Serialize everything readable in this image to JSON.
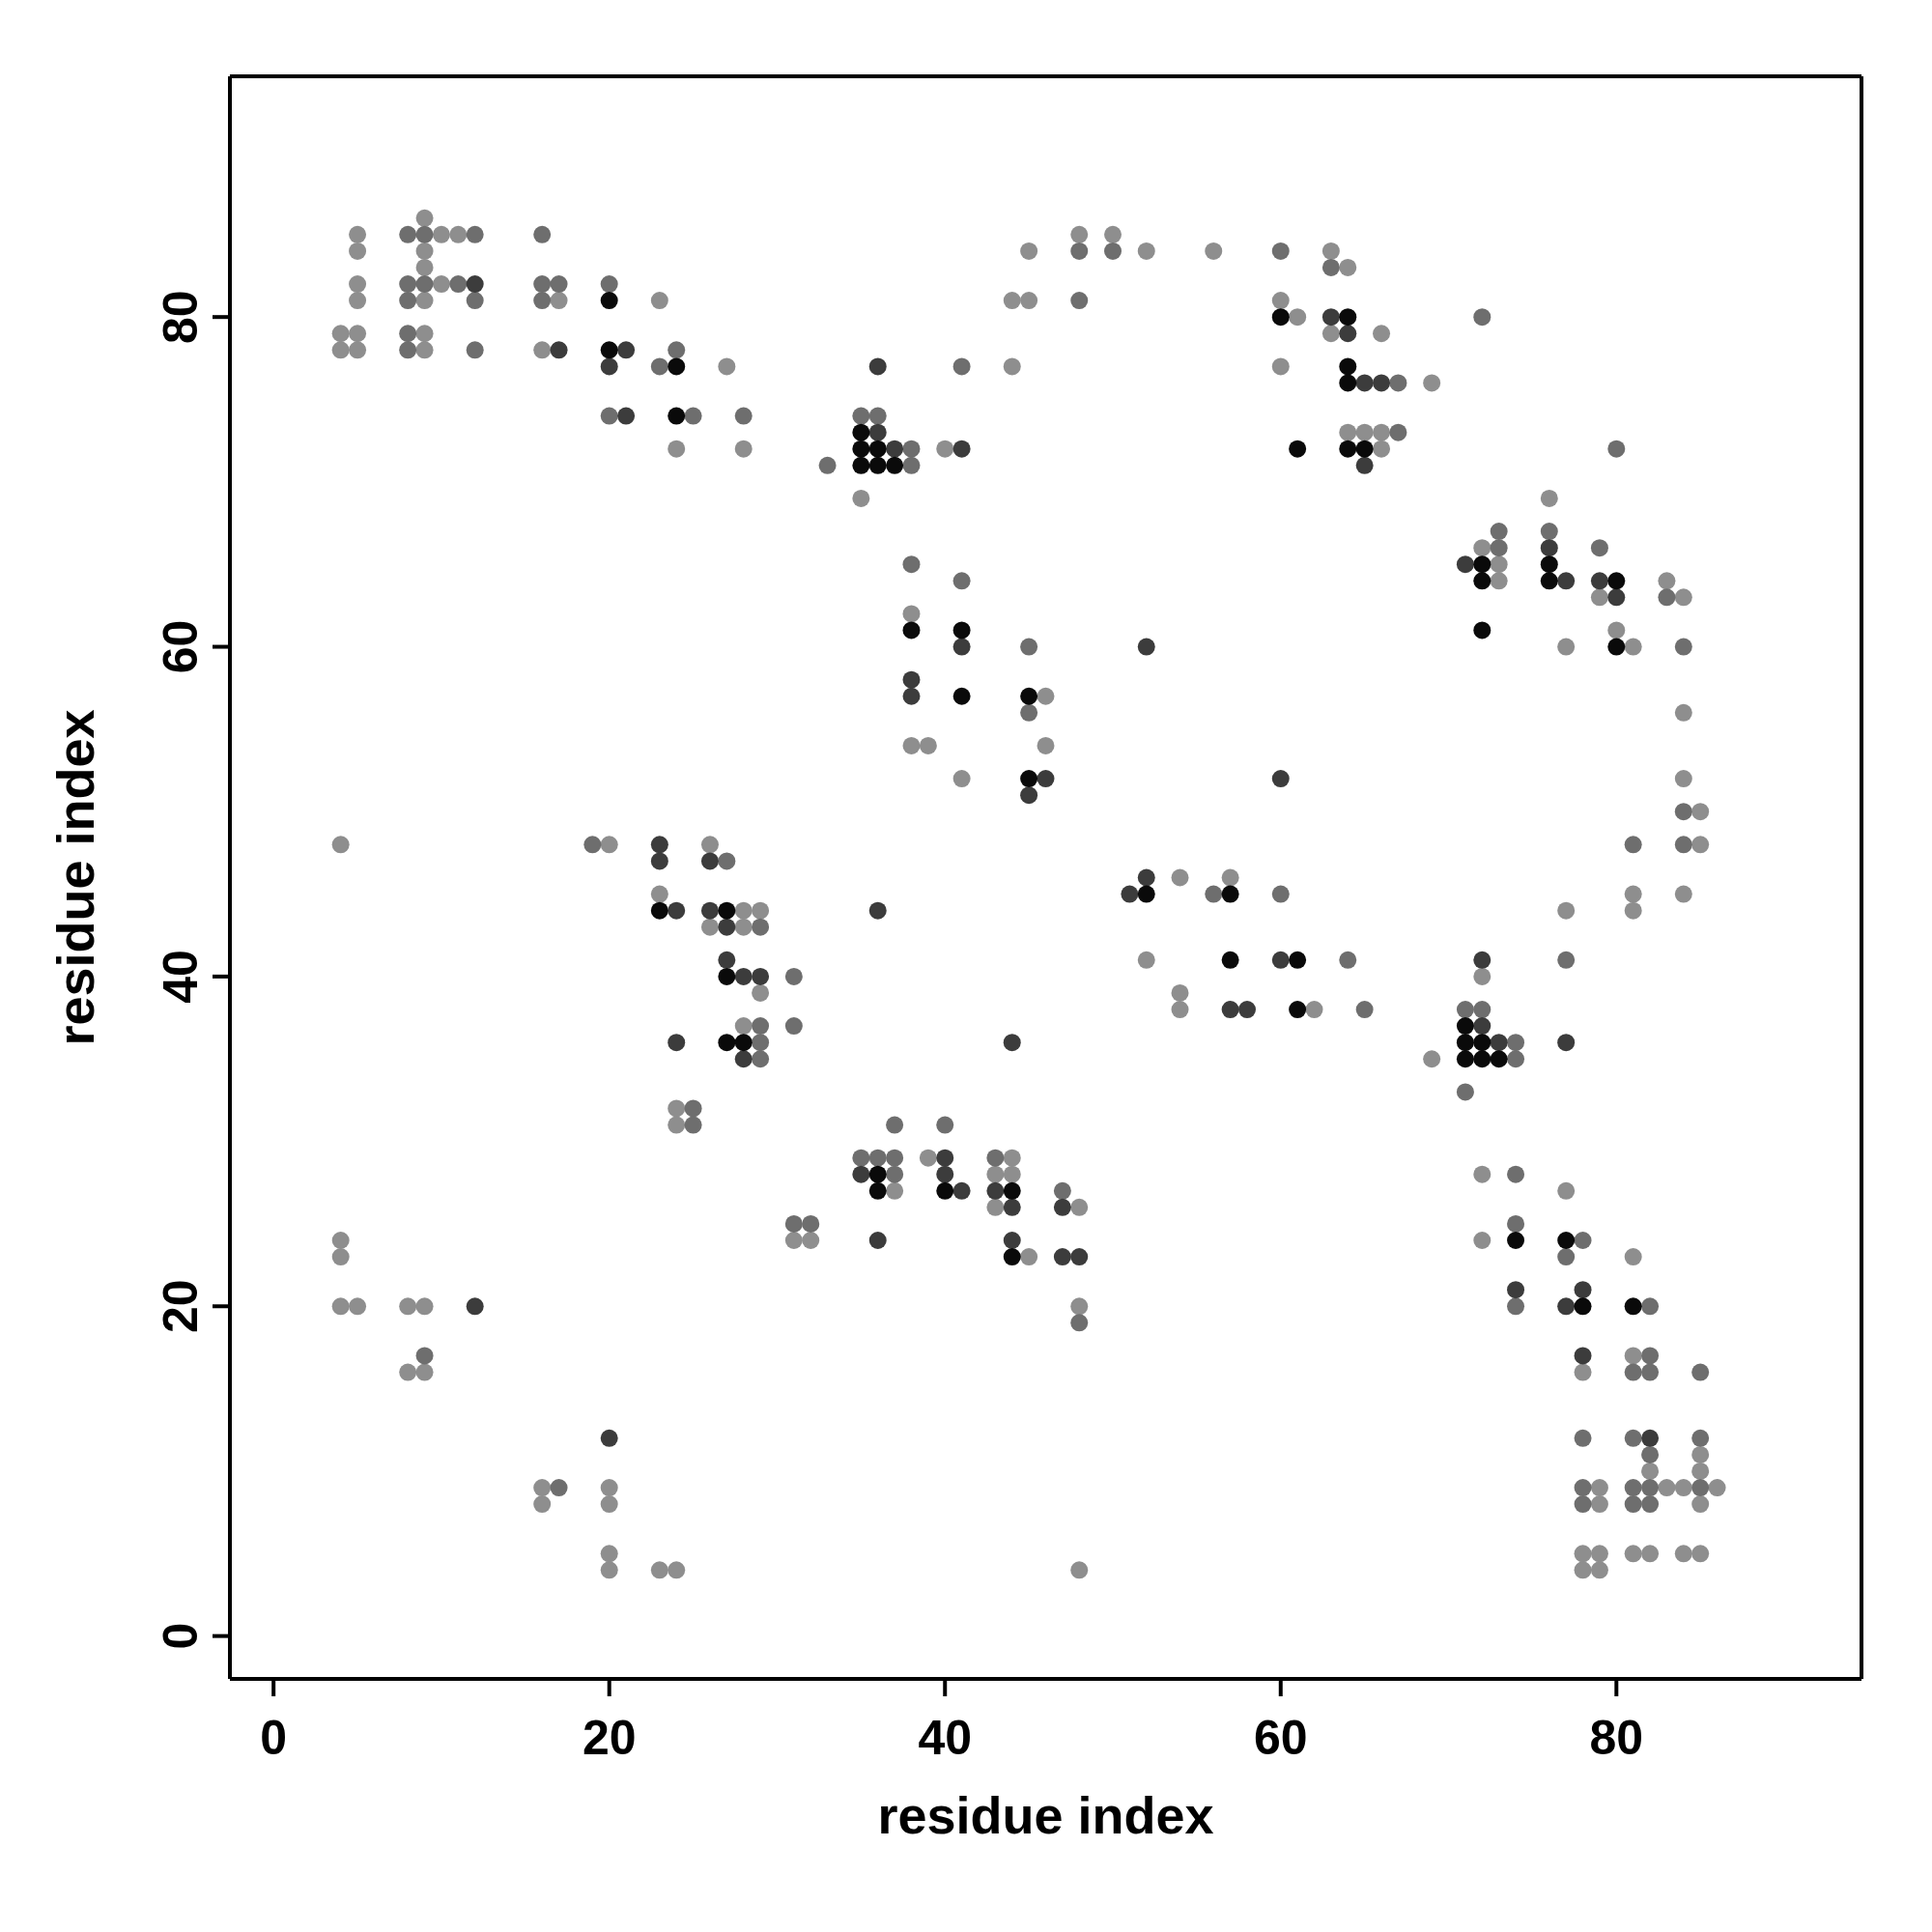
{
  "chart_data": {
    "type": "scatter",
    "xlabel": "residue index",
    "ylabel": "residue index",
    "xlim": [
      -2.6,
      94.6
    ],
    "ylim": [
      -2.6,
      94.6
    ],
    "xticks": [
      0,
      20,
      40,
      60,
      80
    ],
    "yticks": [
      0,
      20,
      40,
      60,
      80
    ],
    "marker": "circle",
    "series": [
      {
        "color": "#8e8e8e",
        "x": [
          4,
          4,
          4,
          4,
          4,
          4,
          5,
          5,
          5,
          5,
          5,
          5,
          5,
          8,
          8,
          9,
          9,
          9,
          9,
          9,
          9,
          9,
          9,
          10,
          10,
          11,
          16,
          16,
          16,
          17,
          20,
          20,
          20,
          20,
          20,
          23,
          23,
          23,
          24,
          24,
          24,
          24,
          26,
          26,
          27,
          28,
          28,
          28,
          28,
          29,
          29,
          31,
          32,
          35,
          37,
          38,
          38,
          39,
          39,
          40,
          41,
          43,
          43,
          44,
          44,
          44,
          44,
          45,
          45,
          45,
          46,
          46,
          48,
          48,
          48,
          48,
          50,
          52,
          52,
          54,
          54,
          54,
          56,
          57,
          60,
          60,
          61,
          62,
          63,
          63,
          64,
          64,
          65,
          66,
          66,
          66,
          69,
          69,
          72,
          72,
          72,
          72,
          73,
          73,
          76,
          77,
          77,
          77,
          78,
          78,
          78,
          79,
          79,
          79,
          79,
          79,
          80,
          81,
          81,
          81,
          81,
          81,
          81,
          82,
          82,
          83,
          83,
          84,
          84,
          84,
          84,
          84,
          84,
          85,
          85,
          85,
          85,
          85,
          85,
          86
        ],
        "values": [
          79,
          78,
          48,
          24,
          23,
          20,
          85,
          84,
          82,
          81,
          79,
          78,
          20,
          20,
          16,
          86,
          84,
          83,
          81,
          79,
          78,
          20,
          16,
          85,
          82,
          85,
          78,
          9,
          8,
          81,
          48,
          9,
          8,
          5,
          4,
          81,
          45,
          4,
          72,
          32,
          31,
          4,
          48,
          43,
          77,
          72,
          44,
          43,
          37,
          44,
          39,
          24,
          24,
          69,
          27,
          62,
          54,
          54,
          29,
          72,
          52,
          28,
          26,
          81,
          77,
          29,
          28,
          84,
          81,
          23,
          57,
          54,
          85,
          26,
          20,
          4,
          85,
          84,
          41,
          46,
          39,
          38,
          84,
          46,
          81,
          77,
          80,
          38,
          84,
          79,
          83,
          73,
          73,
          79,
          73,
          72,
          76,
          35,
          66,
          40,
          28,
          24,
          65,
          64,
          69,
          60,
          44,
          27,
          16,
          5,
          4,
          63,
          9,
          8,
          5,
          4,
          61,
          60,
          45,
          44,
          23,
          17,
          5,
          10,
          5,
          64,
          9,
          63,
          56,
          52,
          45,
          9,
          5,
          50,
          48,
          11,
          10,
          8,
          5,
          9
        ]
      },
      {
        "color": "#6e6e6e",
        "x": [
          8,
          8,
          8,
          8,
          8,
          9,
          9,
          9,
          11,
          12,
          12,
          12,
          16,
          16,
          16,
          17,
          17,
          19,
          20,
          20,
          23,
          24,
          25,
          25,
          25,
          27,
          28,
          29,
          29,
          29,
          29,
          31,
          31,
          31,
          32,
          33,
          35,
          35,
          36,
          36,
          37,
          37,
          37,
          38,
          38,
          38,
          40,
          41,
          41,
          43,
          45,
          45,
          47,
          48,
          48,
          48,
          50,
          56,
          60,
          60,
          63,
          64,
          65,
          67,
          67,
          71,
          71,
          72,
          72,
          73,
          73,
          74,
          74,
          74,
          74,
          74,
          76,
          77,
          77,
          78,
          78,
          78,
          78,
          79,
          80,
          81,
          81,
          81,
          81,
          81,
          82,
          82,
          82,
          82,
          82,
          82,
          83,
          84,
          84,
          84,
          85,
          85,
          85
        ],
        "values": [
          85,
          82,
          81,
          79,
          78,
          85,
          82,
          17,
          82,
          85,
          81,
          78,
          85,
          82,
          81,
          82,
          9,
          48,
          82,
          74,
          77,
          78,
          74,
          32,
          31,
          47,
          74,
          43,
          37,
          36,
          35,
          40,
          37,
          25,
          25,
          71,
          74,
          29,
          74,
          29,
          31,
          29,
          28,
          72,
          71,
          65,
          31,
          77,
          64,
          29,
          60,
          56,
          27,
          84,
          81,
          19,
          84,
          45,
          84,
          45,
          83,
          41,
          38,
          76,
          73,
          38,
          33,
          80,
          38,
          67,
          66,
          36,
          35,
          28,
          25,
          20,
          67,
          41,
          23,
          24,
          12,
          9,
          8,
          66,
          72,
          48,
          16,
          12,
          9,
          8,
          20,
          17,
          16,
          11,
          9,
          8,
          63,
          60,
          50,
          48,
          16,
          12,
          9
        ]
      },
      {
        "color": "#3c3c3c",
        "x": [
          12,
          12,
          17,
          20,
          20,
          21,
          21,
          23,
          23,
          24,
          24,
          26,
          26,
          27,
          27,
          28,
          28,
          29,
          35,
          36,
          36,
          36,
          36,
          37,
          38,
          38,
          40,
          40,
          41,
          41,
          41,
          43,
          44,
          44,
          44,
          45,
          46,
          47,
          47,
          48,
          51,
          52,
          52,
          57,
          58,
          60,
          60,
          63,
          64,
          65,
          65,
          66,
          71,
          72,
          72,
          73,
          74,
          76,
          77,
          77,
          77,
          78,
          78,
          79,
          80,
          82
        ],
        "values": [
          82,
          20,
          78,
          77,
          12,
          78,
          74,
          48,
          47,
          44,
          36,
          47,
          44,
          43,
          41,
          40,
          35,
          40,
          28,
          77,
          73,
          44,
          24,
          72,
          58,
          57,
          29,
          28,
          72,
          60,
          27,
          27,
          36,
          26,
          24,
          51,
          52,
          26,
          23,
          23,
          45,
          60,
          46,
          38,
          38,
          52,
          41,
          80,
          79,
          76,
          71,
          76,
          65,
          41,
          37,
          36,
          21,
          66,
          64,
          36,
          20,
          21,
          17,
          64,
          63,
          12
        ]
      },
      {
        "color": "#0a0a0a",
        "x": [
          20,
          20,
          23,
          24,
          24,
          27,
          27,
          27,
          28,
          35,
          35,
          35,
          36,
          36,
          36,
          36,
          37,
          38,
          40,
          41,
          41,
          44,
          44,
          45,
          45,
          52,
          57,
          57,
          60,
          61,
          61,
          61,
          64,
          64,
          64,
          64,
          65,
          71,
          71,
          71,
          72,
          72,
          72,
          72,
          72,
          73,
          74,
          76,
          76,
          77,
          78,
          80,
          80,
          81
        ],
        "values": [
          81,
          78,
          44,
          77,
          74,
          44,
          40,
          36,
          36,
          73,
          72,
          71,
          72,
          71,
          28,
          27,
          71,
          61,
          27,
          61,
          57,
          27,
          23,
          57,
          52,
          45,
          45,
          41,
          80,
          72,
          41,
          38,
          80,
          77,
          76,
          72,
          72,
          37,
          36,
          35,
          65,
          64,
          61,
          36,
          35,
          35,
          24,
          65,
          64,
          24,
          20,
          64,
          60,
          20
        ]
      }
    ]
  }
}
